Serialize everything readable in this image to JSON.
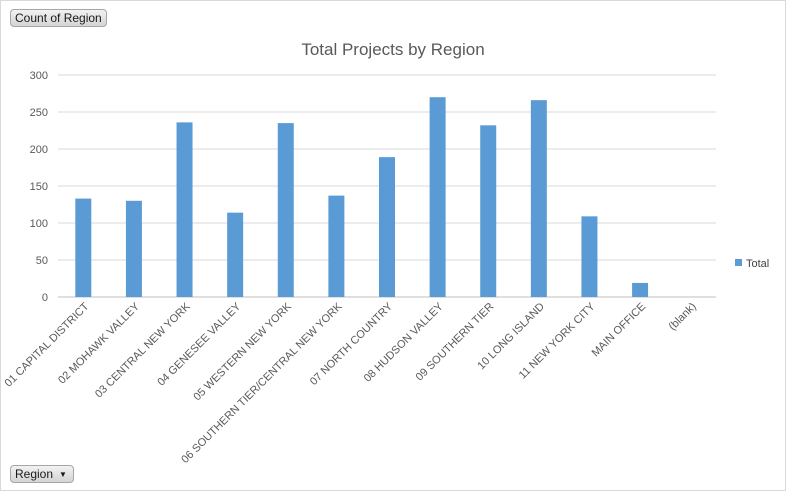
{
  "buttons": {
    "count_label": "Count of Region",
    "region_label": "Region",
    "region_arrow": "▼"
  },
  "chart_data": {
    "type": "bar",
    "title": "Total Projects by Region",
    "xlabel": "",
    "ylabel": "",
    "ylim": [
      0,
      300
    ],
    "yticks": [
      0,
      50,
      100,
      150,
      200,
      250,
      300
    ],
    "grid": true,
    "legend_position": "right",
    "categories": [
      "01 CAPITAL DISTRICT",
      "02 MOHAWK VALLEY",
      "03 CENTRAL NEW YORK",
      "04 GENESEE VALLEY",
      "05 WESTERN NEW YORK",
      "06 SOUTHERN TIER/CENTRAL NEW YORK",
      "07 NORTH COUNTRY",
      "08 HUDSON VALLEY",
      "09 SOUTHERN TIER",
      "10 LONG ISLAND",
      "11 NEW YORK CITY",
      "MAIN OFFICE",
      "(blank)"
    ],
    "series": [
      {
        "name": "Total",
        "color": "#5b9bd5",
        "values": [
          133,
          130,
          236,
          114,
          235,
          137,
          189,
          270,
          232,
          266,
          109,
          19,
          0
        ]
      }
    ]
  }
}
